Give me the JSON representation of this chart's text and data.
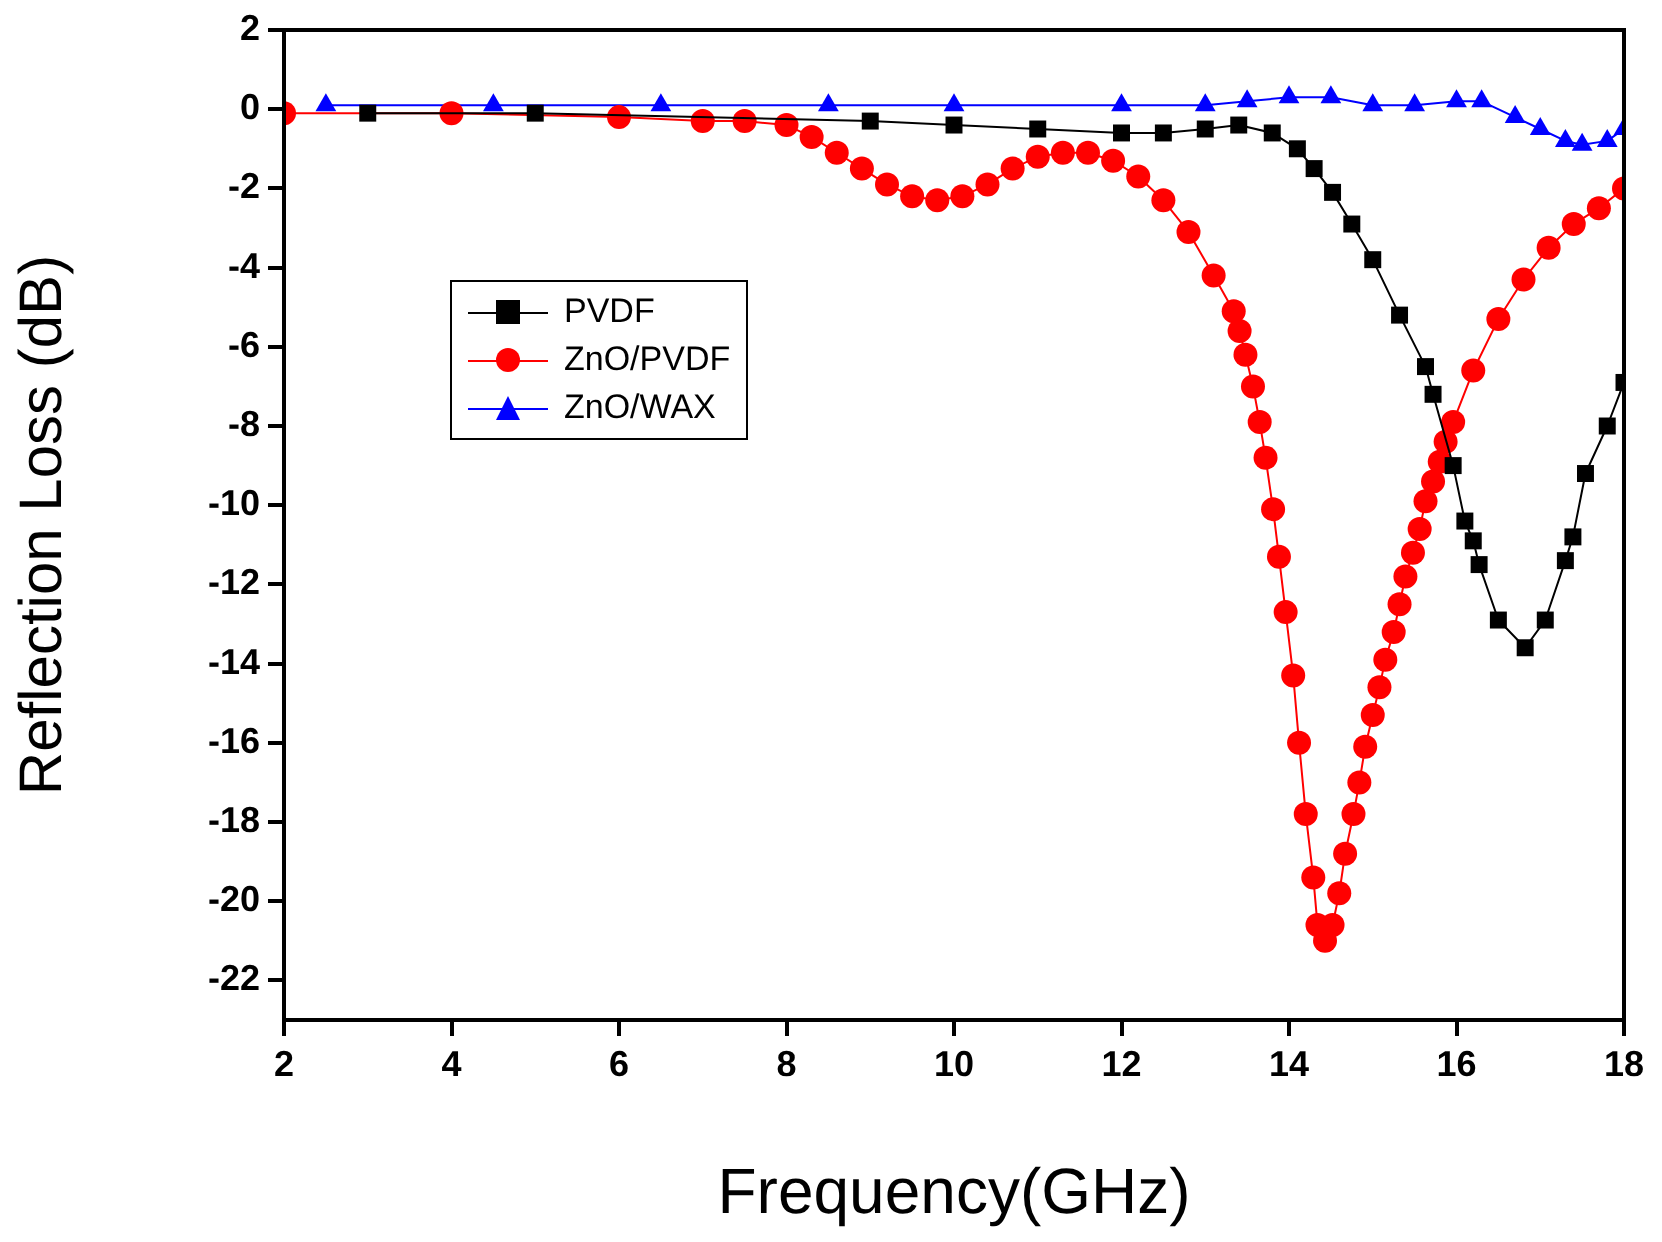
{
  "chart_data": {
    "type": "line",
    "xlabel": "Frequency(GHz)",
    "ylabel": "Reflection Loss (dB)",
    "xlim": [
      2,
      18
    ],
    "xticks": [
      2,
      4,
      6,
      8,
      10,
      12,
      14,
      16,
      18
    ],
    "ylim": [
      -23,
      2
    ],
    "yticks": [
      -22,
      -20,
      -18,
      -16,
      -14,
      -12,
      -10,
      -8,
      -6,
      -4,
      -2,
      0,
      2
    ],
    "legend": "top left",
    "grid": false,
    "series": [
      {
        "name": "PVDF",
        "color": "#000000",
        "marker": "square",
        "x": [
          3,
          5,
          9,
          10,
          11,
          12,
          12.5,
          13,
          13.4,
          13.8,
          14.1,
          14.3,
          14.52,
          14.75,
          15,
          15.32,
          15.63,
          15.72,
          15.96,
          16.1,
          16.2,
          16.27,
          16.5,
          16.82,
          17.06,
          17.3,
          17.39,
          17.54,
          17.8,
          18
        ],
        "values": [
          -0.1,
          -0.1,
          -0.3,
          -0.4,
          -0.5,
          -0.6,
          -0.6,
          -0.5,
          -0.4,
          -0.6,
          -1.0,
          -1.5,
          -2.1,
          -2.9,
          -3.8,
          -5.2,
          -6.5,
          -7.2,
          -9.0,
          -10.4,
          -10.9,
          -11.5,
          -12.9,
          -13.6,
          -12.9,
          -11.4,
          -10.8,
          -9.2,
          -8.0,
          -6.9
        ]
      },
      {
        "name": "ZnO/PVDF",
        "color": "#ff0000",
        "marker": "circle",
        "x": [
          2,
          4,
          6,
          7,
          7.5,
          8,
          8.3,
          8.6,
          8.9,
          9.2,
          9.5,
          9.8,
          10.1,
          10.4,
          10.7,
          11,
          11.3,
          11.6,
          11.9,
          12.2,
          12.5,
          12.8,
          13.1,
          13.34,
          13.41,
          13.48,
          13.57,
          13.65,
          13.72,
          13.81,
          13.88,
          13.96,
          14.05,
          14.12,
          14.2,
          14.29,
          14.34,
          14.43,
          14.52,
          14.6,
          14.67,
          14.77,
          14.84,
          14.91,
          15,
          15.08,
          15.15,
          15.25,
          15.32,
          15.39,
          15.48,
          15.56,
          15.63,
          15.72,
          15.8,
          15.87,
          15.96,
          16.2,
          16.5,
          16.8,
          17.1,
          17.4,
          17.7,
          18
        ],
        "values": [
          -0.1,
          -0.1,
          -0.2,
          -0.3,
          -0.3,
          -0.4,
          -0.7,
          -1.1,
          -1.5,
          -1.9,
          -2.2,
          -2.3,
          -2.2,
          -1.9,
          -1.5,
          -1.2,
          -1.1,
          -1.1,
          -1.3,
          -1.7,
          -2.3,
          -3.1,
          -4.2,
          -5.1,
          -5.6,
          -6.2,
          -7.0,
          -7.9,
          -8.8,
          -10.1,
          -11.3,
          -12.7,
          -14.3,
          -16.0,
          -17.8,
          -19.4,
          -20.6,
          -21.0,
          -20.6,
          -19.8,
          -18.8,
          -17.8,
          -17.0,
          -16.1,
          -15.3,
          -14.6,
          -13.9,
          -13.2,
          -12.5,
          -11.8,
          -11.2,
          -10.6,
          -9.9,
          -9.4,
          -8.9,
          -8.4,
          -7.9,
          -6.6,
          -5.3,
          -4.3,
          -3.5,
          -2.9,
          -2.5,
          -2.0
        ]
      },
      {
        "name": "ZnO/WAX",
        "color": "#0000ff",
        "marker": "triangle",
        "x": [
          2.5,
          4.5,
          6.5,
          8.5,
          10,
          12,
          13,
          13.5,
          14,
          14.5,
          15,
          15.5,
          16,
          16.3,
          16.7,
          17,
          17.3,
          17.5,
          17.8,
          18
        ],
        "values": [
          0.1,
          0.1,
          0.1,
          0.1,
          0.1,
          0.1,
          0.1,
          0.2,
          0.3,
          0.3,
          0.1,
          0.1,
          0.2,
          0.2,
          -0.2,
          -0.5,
          -0.8,
          -0.9,
          -0.8,
          -0.5
        ]
      }
    ]
  }
}
